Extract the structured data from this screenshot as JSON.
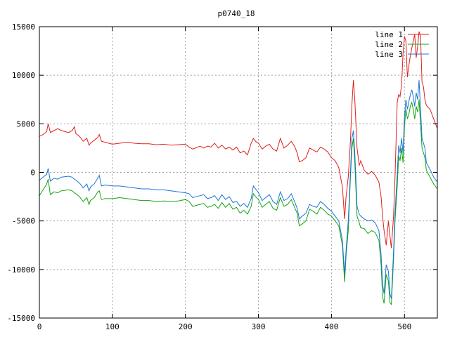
{
  "chart_data": {
    "type": "line",
    "title": "p0740_18",
    "xlabel": "",
    "ylabel": "",
    "xlim": [
      0,
      545
    ],
    "ylim": [
      -15000,
      15000
    ],
    "xticks": [
      0,
      100,
      200,
      300,
      400,
      500
    ],
    "yticks": [
      -15000,
      -10000,
      -5000,
      0,
      5000,
      10000,
      15000
    ],
    "grid": true,
    "legend_position": "top-right",
    "series": [
      {
        "name": "line 1",
        "color": "#e0201c",
        "x": [
          0,
          5,
          10,
          12,
          15,
          20,
          25,
          30,
          40,
          45,
          48,
          50,
          55,
          60,
          65,
          68,
          70,
          75,
          80,
          82,
          85,
          90,
          100,
          110,
          120,
          130,
          140,
          150,
          160,
          170,
          180,
          190,
          200,
          205,
          210,
          220,
          225,
          230,
          235,
          240,
          245,
          250,
          255,
          260,
          265,
          270,
          275,
          280,
          285,
          290,
          293,
          296,
          300,
          305,
          310,
          315,
          320,
          325,
          330,
          335,
          340,
          345,
          350,
          353,
          356,
          360,
          365,
          370,
          375,
          380,
          385,
          390,
          395,
          400,
          405,
          410,
          415,
          418,
          420,
          423,
          426,
          428,
          430,
          432,
          435,
          438,
          440,
          445,
          450,
          455,
          460,
          465,
          468,
          470,
          472,
          475,
          478,
          480,
          482,
          485,
          487,
          490,
          492,
          494,
          496,
          498,
          500,
          502,
          504,
          506,
          508,
          510,
          512,
          514,
          516,
          518,
          520,
          522,
          524,
          526,
          528,
          530,
          535,
          540,
          545
        ],
        "values": [
          3700,
          3900,
          4200,
          5000,
          4100,
          4300,
          4500,
          4300,
          4100,
          4300,
          4700,
          4000,
          3700,
          3200,
          3500,
          2800,
          3000,
          3300,
          3600,
          3900,
          3200,
          3100,
          2900,
          3000,
          3100,
          3000,
          2950,
          2950,
          2850,
          2900,
          2800,
          2850,
          2900,
          2600,
          2400,
          2700,
          2500,
          2700,
          2600,
          3000,
          2500,
          2800,
          2400,
          2600,
          2300,
          2600,
          2000,
          2200,
          1800,
          3000,
          3500,
          3200,
          3000,
          2400,
          2700,
          2900,
          2400,
          2200,
          3500,
          2500,
          2800,
          3200,
          2600,
          2000,
          1100,
          1200,
          1500,
          2500,
          2300,
          2100,
          2600,
          2400,
          2100,
          1500,
          1200,
          500,
          -1500,
          -4800,
          -2500,
          -500,
          3200,
          7000,
          9500,
          7500,
          2500,
          700,
          1200,
          200,
          -200,
          100,
          -300,
          -1000,
          -2500,
          -4500,
          -6000,
          -7500,
          -5000,
          -6500,
          -7800,
          -4500,
          -500,
          7200,
          8000,
          7800,
          9000,
          12200,
          14000,
          13500,
          9800,
          11000,
          12000,
          12800,
          13500,
          14200,
          11800,
          13000,
          14500,
          14000,
          9300,
          8800,
          7500,
          6900,
          6500,
          5500,
          4500
        ]
      },
      {
        "name": "line 2",
        "color": "#13a313",
        "x": [
          0,
          5,
          10,
          12,
          15,
          20,
          25,
          30,
          40,
          45,
          48,
          50,
          55,
          60,
          65,
          68,
          70,
          75,
          80,
          82,
          85,
          90,
          100,
          110,
          120,
          130,
          140,
          150,
          160,
          170,
          180,
          190,
          200,
          205,
          210,
          220,
          225,
          230,
          235,
          240,
          245,
          250,
          255,
          260,
          265,
          270,
          275,
          280,
          285,
          290,
          293,
          296,
          300,
          305,
          310,
          315,
          320,
          325,
          330,
          335,
          340,
          345,
          350,
          353,
          356,
          360,
          365,
          370,
          375,
          380,
          385,
          390,
          395,
          400,
          405,
          410,
          415,
          418,
          420,
          423,
          426,
          428,
          430,
          432,
          435,
          438,
          440,
          445,
          450,
          455,
          460,
          465,
          468,
          470,
          472,
          475,
          478,
          480,
          482,
          485,
          487,
          490,
          492,
          494,
          496,
          498,
          500,
          502,
          504,
          506,
          508,
          510,
          512,
          514,
          516,
          518,
          520,
          522,
          524,
          526,
          528,
          530,
          535,
          540,
          545
        ],
        "values": [
          -2400,
          -1800,
          -1200,
          -700,
          -2300,
          -2000,
          -2100,
          -1900,
          -1800,
          -1900,
          -2100,
          -2200,
          -2500,
          -3000,
          -2600,
          -3300,
          -2900,
          -2600,
          -2000,
          -1900,
          -2800,
          -2700,
          -2700,
          -2600,
          -2700,
          -2800,
          -2900,
          -2900,
          -3000,
          -2950,
          -3000,
          -2950,
          -2800,
          -3000,
          -3500,
          -3300,
          -3200,
          -3600,
          -3500,
          -3300,
          -3700,
          -3100,
          -3600,
          -3200,
          -3800,
          -3600,
          -4200,
          -3900,
          -4300,
          -3500,
          -2200,
          -2500,
          -2800,
          -3600,
          -3300,
          -3000,
          -3700,
          -3900,
          -2600,
          -3500,
          -3300,
          -2800,
          -3700,
          -4200,
          -5500,
          -5300,
          -5000,
          -3800,
          -4000,
          -4300,
          -3600,
          -3900,
          -4300,
          -4500,
          -5000,
          -5500,
          -7500,
          -11300,
          -8500,
          -6000,
          -500,
          2500,
          3500,
          1000,
          -4500,
          -5200,
          -5700,
          -5800,
          -6300,
          -6000,
          -6200,
          -7000,
          -9500,
          -12800,
          -13500,
          -10500,
          -11200,
          -13400,
          -13600,
          -9000,
          -5000,
          -1500,
          1700,
          1200,
          2500,
          1000,
          4800,
          6500,
          5500,
          6000,
          6800,
          7200,
          6500,
          5500,
          6800,
          6200,
          7500,
          5000,
          2500,
          2000,
          1500,
          200,
          -500,
          -1200,
          -1700
        ]
      },
      {
        "name": "line 3",
        "color": "#1775d8",
        "x": [
          0,
          5,
          10,
          12,
          15,
          20,
          25,
          30,
          40,
          45,
          48,
          50,
          55,
          60,
          65,
          68,
          70,
          75,
          80,
          82,
          85,
          90,
          100,
          110,
          120,
          130,
          140,
          150,
          160,
          170,
          180,
          190,
          200,
          205,
          210,
          220,
          225,
          230,
          235,
          240,
          245,
          250,
          255,
          260,
          265,
          270,
          275,
          280,
          285,
          290,
          293,
          296,
          300,
          305,
          310,
          315,
          320,
          325,
          330,
          335,
          340,
          345,
          350,
          353,
          356,
          360,
          365,
          370,
          375,
          380,
          385,
          390,
          395,
          400,
          405,
          410,
          415,
          418,
          420,
          423,
          426,
          428,
          430,
          432,
          435,
          438,
          440,
          445,
          450,
          455,
          460,
          465,
          468,
          470,
          472,
          475,
          478,
          480,
          482,
          485,
          487,
          490,
          492,
          494,
          496,
          498,
          500,
          502,
          504,
          506,
          508,
          510,
          512,
          514,
          516,
          518,
          520,
          522,
          524,
          526,
          528,
          530,
          535,
          540,
          545
        ],
        "values": [
          -800,
          -500,
          -200,
          400,
          -900,
          -600,
          -700,
          -500,
          -400,
          -500,
          -700,
          -800,
          -1100,
          -1600,
          -1200,
          -1900,
          -1500,
          -1200,
          -600,
          -300,
          -1400,
          -1300,
          -1400,
          -1400,
          -1500,
          -1600,
          -1700,
          -1700,
          -1800,
          -1800,
          -1900,
          -2000,
          -2100,
          -2200,
          -2600,
          -2400,
          -2300,
          -2700,
          -2600,
          -2400,
          -2900,
          -2300,
          -2800,
          -2500,
          -3100,
          -3000,
          -3500,
          -3200,
          -3600,
          -2700,
          -1400,
          -1700,
          -2100,
          -2900,
          -2600,
          -2300,
          -3000,
          -3300,
          -2000,
          -2900,
          -2700,
          -2200,
          -3100,
          -3700,
          -4800,
          -4500,
          -4200,
          -3300,
          -3500,
          -3600,
          -3000,
          -3300,
          -3700,
          -4000,
          -4500,
          -5000,
          -7000,
          -10500,
          -8000,
          -5000,
          0,
          3500,
          4300,
          2000,
          -3500,
          -4300,
          -4500,
          -4800,
          -5000,
          -4900,
          -5200,
          -6000,
          -8500,
          -11500,
          -12500,
          -9500,
          -10200,
          -12500,
          -13000,
          -8200,
          -4200,
          -200,
          2800,
          2000,
          3500,
          2000,
          5800,
          7500,
          6500,
          7300,
          8000,
          8500,
          7800,
          6800,
          8200,
          7500,
          9500,
          6500,
          3500,
          3000,
          2500,
          1000,
          300,
          -500,
          -1000
        ]
      }
    ]
  }
}
